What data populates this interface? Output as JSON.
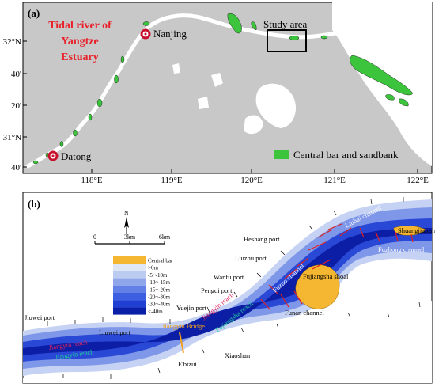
{
  "panel_a": {
    "label": "(a)",
    "title_line1": "Tidal river of",
    "title_line2": "Yangtze",
    "title_line3": "Estuary",
    "title_color": "#e8212a",
    "cities": {
      "nanjing": "Nanjing",
      "datong": "Datong"
    },
    "study_area": "Study area",
    "legend": "Central bar and sandbank",
    "lat_ticks": [
      "32°N",
      "40'",
      "20'",
      "31°N",
      "40'"
    ],
    "lon_ticks": [
      "118°E",
      "119°E",
      "120°E",
      "121°E",
      "122°E"
    ],
    "colors": {
      "land": "#c8c8c8",
      "water": "#ffffff",
      "bar": "#3dc43d",
      "marker": "#c8102e"
    }
  },
  "panel_b": {
    "label": "(b)",
    "north": "N",
    "scale": [
      "0",
      "3km",
      "6km"
    ],
    "legend_items": [
      "Central bar",
      ">0m",
      "-5~-10m",
      "-10~-15m",
      "-15~-20m",
      "-20~-30m",
      "-30~-40m",
      "<-40m"
    ],
    "legend_colors": [
      "#f5b731",
      "#dfe6f6",
      "#bccbf0",
      "#8fa6ea",
      "#6280e6",
      "#3d5ee0",
      "#2040d4",
      "#0a1fa8"
    ],
    "places": {
      "heshang": "Heshang port",
      "liuzhu": "Liuzhu port",
      "wanfu": "Wanfu port",
      "pengqi": "Pengqi port",
      "yuejin": "Yuejin port",
      "liuwei": "Liuwei port",
      "jiuwei": "Jiuwei port",
      "xiaoshan": "Xiaoshan",
      "ebizui": "E'bizui"
    },
    "features": {
      "shuangjian_shoal": "Shuangjian shoal",
      "fuzhong_channel": "Fuzhong channel",
      "fuzuo_channel": "Fuzuo channel",
      "fujiangsha_shoal": "Fujiangsha shoal",
      "funan_channel": "Funan channel",
      "fujiangsha_reach": "Fujiangsha reach",
      "jiangyin_bridge": "Jiangyin Bridge",
      "jiangyin_reach_red": "Jiangyin reach",
      "jiangyin_reach_green": "Jiangyin reach",
      "liuhai_channel": "Liuhai channel"
    },
    "colors": {
      "reach_red": "#e0245e",
      "reach_green": "#22c7a0",
      "bridge": "#f2a020",
      "section": "#e02020"
    }
  }
}
